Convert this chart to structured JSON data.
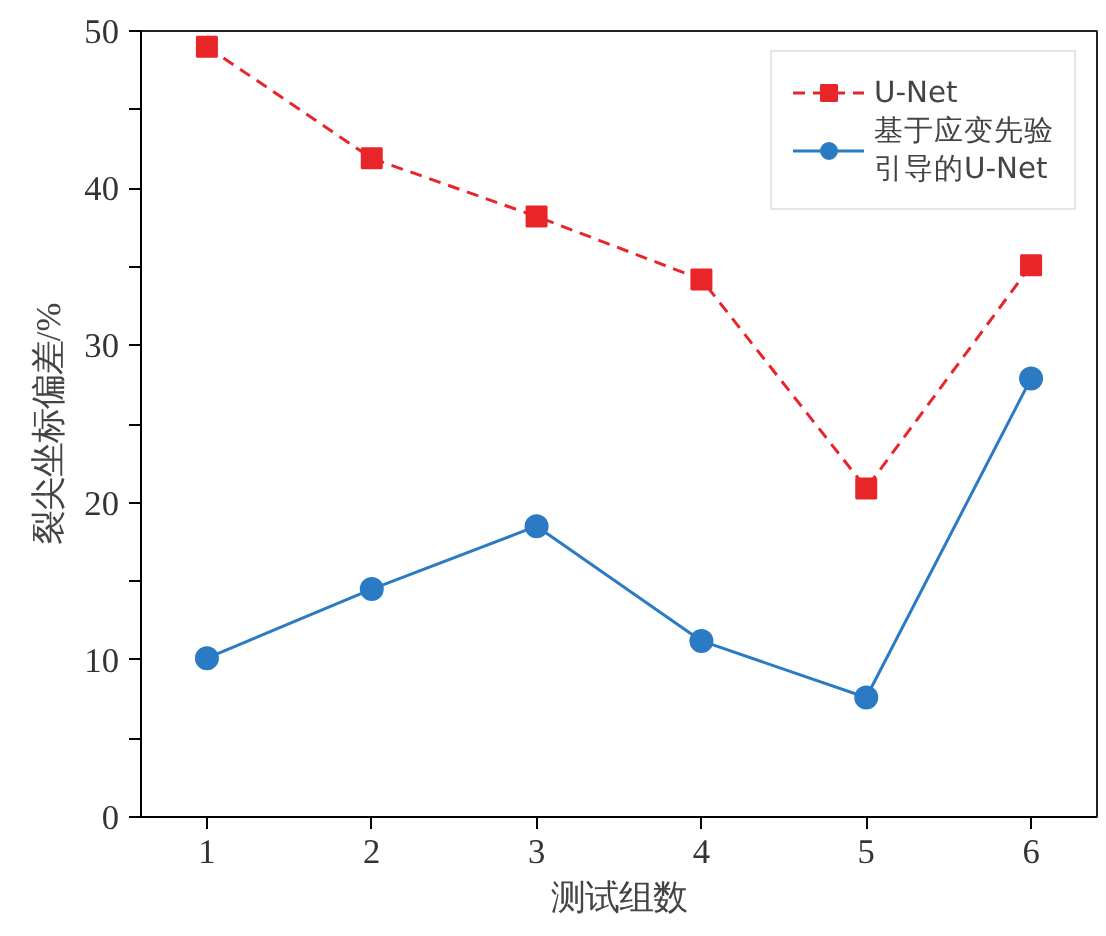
{
  "chart_data": {
    "type": "line",
    "xlabel": "测试组数",
    "ylabel": "裂尖坐标偏差/%",
    "x": [
      1,
      2,
      3,
      4,
      5,
      6
    ],
    "series": [
      {
        "name": "U-Net",
        "color": "#e8262a",
        "values": [
          49.0,
          41.9,
          38.2,
          34.2,
          20.9,
          35.1
        ],
        "marker": "square",
        "line_style": "dashed"
      },
      {
        "name": "基于应变先验引导的U-Net",
        "color": "#2b7ac4",
        "values": [
          10.1,
          14.5,
          18.5,
          11.2,
          7.6,
          27.9
        ],
        "marker": "circle",
        "line_style": "solid"
      }
    ],
    "xlim": [
      0.6,
      6.4
    ],
    "ylim": [
      0,
      50
    ],
    "xticks": [
      1,
      2,
      3,
      4,
      5,
      6
    ],
    "yticks": [
      0,
      {
        "value": 5,
        "label": null
      },
      10,
      {
        "value": 15,
        "label": null
      },
      20,
      {
        "value": 25,
        "label": null
      },
      30,
      {
        "value": 35,
        "label": null
      },
      40,
      {
        "value": 45,
        "label": null
      },
      50
    ],
    "grid": false,
    "legend": "top right"
  }
}
